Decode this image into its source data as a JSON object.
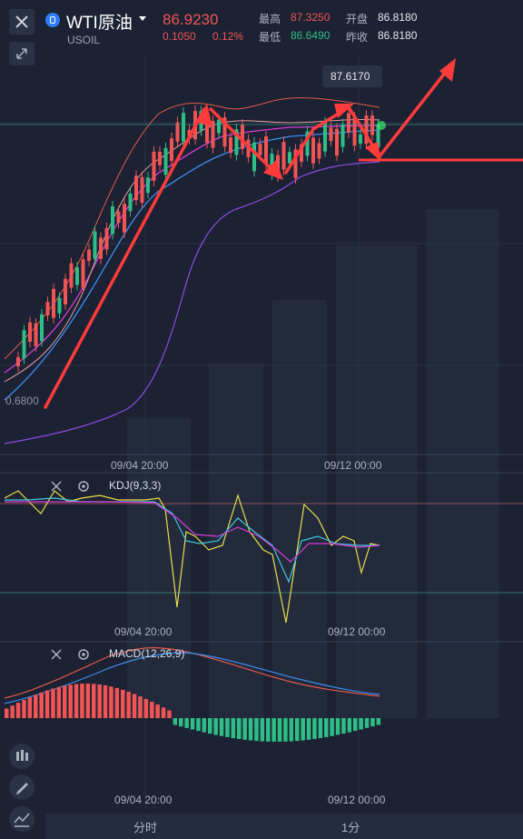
{
  "header": {
    "symbol_name": "WTI原油",
    "symbol_code": "USOIL",
    "price": "86.9230",
    "change": "0.1050",
    "change_pct": "0.12%",
    "high_label": "最高",
    "high_value": "87.3250",
    "low_label": "最低",
    "low_value": "86.6490",
    "open_label": "开盘",
    "open_value": "86.8180",
    "prev_close_label": "昨收",
    "prev_close_value": "86.8180"
  },
  "main_chart": {
    "max_label": "87.6170",
    "min_label": "0.6800",
    "time_labels": [
      "09/04 20:00",
      "09/12 00:00"
    ]
  },
  "kdj": {
    "title": "KDJ(9,3,3)",
    "time_labels": [
      "09/04 20:00",
      "09/12 00:00"
    ]
  },
  "macd": {
    "title": "MACD(12,26,9)",
    "time_labels": [
      "09/04 20:00",
      "09/12 00:00"
    ]
  },
  "tabs": [
    "分时",
    "1分"
  ],
  "colors": {
    "up": "#f05454",
    "down": "#2ebd85",
    "background": "#1c2233",
    "arrow": "#ff3b3b"
  },
  "icons": {
    "close": "close-icon",
    "expand": "expand-icon",
    "settings": "gear-icon",
    "candles": "candlestick-icon",
    "draw": "pencil-icon",
    "indicator": "indicator-icon"
  },
  "chart_data": {
    "type": "candlestick",
    "candles": [
      [
        1,
        0,
        1,
        0
      ],
      [
        1,
        0,
        1,
        0
      ],
      [
        1,
        0,
        1,
        0
      ],
      [
        0,
        1,
        1,
        0
      ],
      [
        1,
        0,
        1,
        0
      ],
      [
        0,
        1,
        1,
        0
      ],
      [
        1,
        0,
        1,
        0
      ],
      [
        1,
        0,
        1,
        0
      ],
      [
        0,
        1,
        1,
        0
      ],
      [
        1,
        0,
        1,
        0
      ],
      [
        1,
        0,
        1,
        0
      ],
      [
        0,
        1,
        1,
        0
      ],
      [
        1,
        0,
        1,
        0
      ],
      [
        0,
        1,
        1,
        0
      ],
      [
        1,
        0,
        1,
        0
      ],
      [
        0,
        1,
        1,
        0
      ],
      [
        1,
        0,
        1,
        0
      ],
      [
        1,
        0,
        1,
        0
      ],
      [
        0,
        1,
        1,
        0
      ],
      [
        1,
        0,
        1,
        0
      ],
      [
        0,
        1,
        1,
        0
      ],
      [
        1,
        0,
        1,
        0
      ],
      [
        0,
        1,
        1,
        0
      ],
      [
        1,
        0,
        1,
        0
      ]
    ]
  }
}
